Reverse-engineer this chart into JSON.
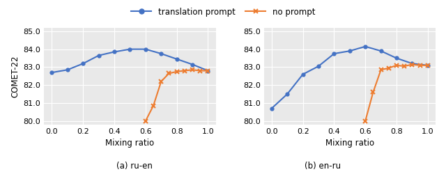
{
  "ru_en": {
    "blue_x": [
      0,
      0.1,
      0.2,
      0.3,
      0.4,
      0.5,
      0.6,
      0.7,
      0.8,
      0.9,
      1.0
    ],
    "blue_y": [
      82.7,
      82.85,
      83.2,
      83.65,
      83.85,
      84.0,
      84.0,
      83.75,
      83.45,
      83.15,
      82.8
    ],
    "orange_x": [
      0.6,
      0.65,
      0.7,
      0.75,
      0.8,
      0.85,
      0.9,
      0.95,
      1.0
    ],
    "orange_y": [
      80.0,
      80.85,
      82.2,
      82.65,
      82.75,
      82.8,
      82.85,
      82.8,
      82.8
    ],
    "ylim": [
      79.8,
      85.2
    ],
    "yticks": [
      80.0,
      81.0,
      82.0,
      83.0,
      84.0,
      85.0
    ],
    "xlabel": "Mixing ratio",
    "ylabel": "COMET-22",
    "subtitle": "(a) ru-en"
  },
  "en_ru": {
    "blue_x": [
      0,
      0.1,
      0.2,
      0.3,
      0.4,
      0.5,
      0.6,
      0.7,
      0.8,
      0.9,
      1.0
    ],
    "blue_y": [
      80.7,
      81.5,
      82.6,
      83.05,
      83.75,
      83.9,
      84.15,
      83.9,
      83.5,
      83.2,
      83.1
    ],
    "orange_x": [
      0.6,
      0.65,
      0.7,
      0.75,
      0.8,
      0.85,
      0.9,
      0.95,
      1.0
    ],
    "orange_y": [
      80.0,
      81.6,
      82.85,
      82.95,
      83.1,
      83.05,
      83.15,
      83.1,
      83.1
    ],
    "ylim": [
      79.8,
      85.2
    ],
    "yticks": [
      80.0,
      81.0,
      82.0,
      83.0,
      84.0,
      85.0
    ],
    "xlabel": "Mixing ratio",
    "ylabel": "",
    "subtitle": "(b) en-ru"
  },
  "blue_color": "#4472c4",
  "orange_color": "#ed7d31",
  "legend_labels": [
    "translation prompt",
    "no prompt"
  ],
  "fig_facecolor": "#ffffff",
  "ax_facecolor": "#e9e9e9",
  "grid_color": "#ffffff"
}
